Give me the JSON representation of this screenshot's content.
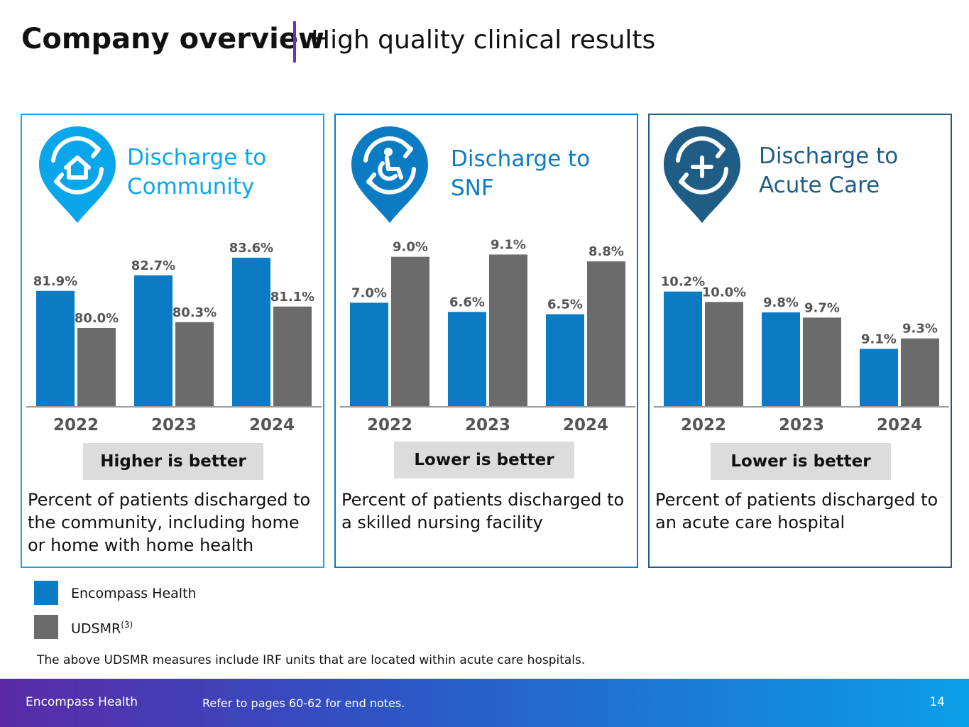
{
  "header": {
    "title": "Company overview",
    "subtitle": "High quality clinical results"
  },
  "colors": {
    "encompass": "#0b7cc4",
    "udsmr": "#6b6b6b",
    "axis": "#9a9a9a"
  },
  "panels": [
    {
      "title_line1": "Discharge to",
      "title_line2": "Community",
      "icon": "home-cycle-icon",
      "pin_color": "#0aa6ec",
      "title_color": "#0aa6ec",
      "badge": "Higher is better",
      "description": "Percent of patients discharged to the community, including home or home with home health"
    },
    {
      "title_line1": "Discharge to",
      "title_line2": "SNF",
      "icon": "wheelchair-cycle-icon",
      "pin_color": "#0b7cc4",
      "title_color": "#0b7cc4",
      "badge": "Lower is better",
      "description": "Percent of patients discharged to a skilled nursing facility"
    },
    {
      "title_line1": "Discharge to",
      "title_line2": "Acute Care",
      "icon": "medical-cross-cycle-icon",
      "pin_color": "#1f5d86",
      "title_color": "#1f5d86",
      "badge": "Lower is better",
      "description": "Percent of patients discharged to an acute care hospital"
    }
  ],
  "chart_data": [
    {
      "type": "bar",
      "title": "Discharge to Community",
      "categories": [
        "2022",
        "2023",
        "2024"
      ],
      "series": [
        {
          "name": "Encompass Health",
          "values": [
            81.9,
            82.7,
            83.6
          ],
          "labels": [
            "81.9%",
            "82.7%",
            "83.6%"
          ]
        },
        {
          "name": "UDSMR",
          "values": [
            80.0,
            80.3,
            81.1
          ],
          "labels": [
            "80.0%",
            "80.3%",
            "81.1%"
          ]
        }
      ],
      "ylim": [
        76.0,
        84.0
      ]
    },
    {
      "type": "bar",
      "title": "Discharge to SNF",
      "categories": [
        "2022",
        "2023",
        "2024"
      ],
      "series": [
        {
          "name": "Encompass Health",
          "values": [
            7.0,
            6.6,
            6.5
          ],
          "labels": [
            "7.0%",
            "6.6%",
            "6.5%"
          ]
        },
        {
          "name": "UDSMR",
          "values": [
            9.0,
            9.1,
            8.8
          ],
          "labels": [
            "9.0%",
            "9.1%",
            "8.8%"
          ]
        }
      ],
      "ylim": [
        2.5,
        9.3
      ]
    },
    {
      "type": "bar",
      "title": "Discharge to Acute Care",
      "categories": [
        "2022",
        "2023",
        "2024"
      ],
      "series": [
        {
          "name": "Encompass Health",
          "values": [
            10.2,
            9.8,
            9.1
          ],
          "labels": [
            "10.2%",
            "9.8%",
            "9.1%"
          ]
        },
        {
          "name": "UDSMR",
          "values": [
            10.0,
            9.7,
            9.3
          ],
          "labels": [
            "10.0%",
            "9.7%",
            "9.3%"
          ]
        }
      ],
      "ylim": [
        8.0,
        11.0
      ]
    }
  ],
  "legend": [
    {
      "label": "Encompass Health",
      "sup": ""
    },
    {
      "label": "UDSMR",
      "sup": "(3)"
    }
  ],
  "footnote": "The above UDSMR measures include IRF units that are located within acute care hospitals.",
  "footer": {
    "brand": "Encompass Health",
    "note": "Refer to pages 60-62 for end notes.",
    "page": "14"
  }
}
